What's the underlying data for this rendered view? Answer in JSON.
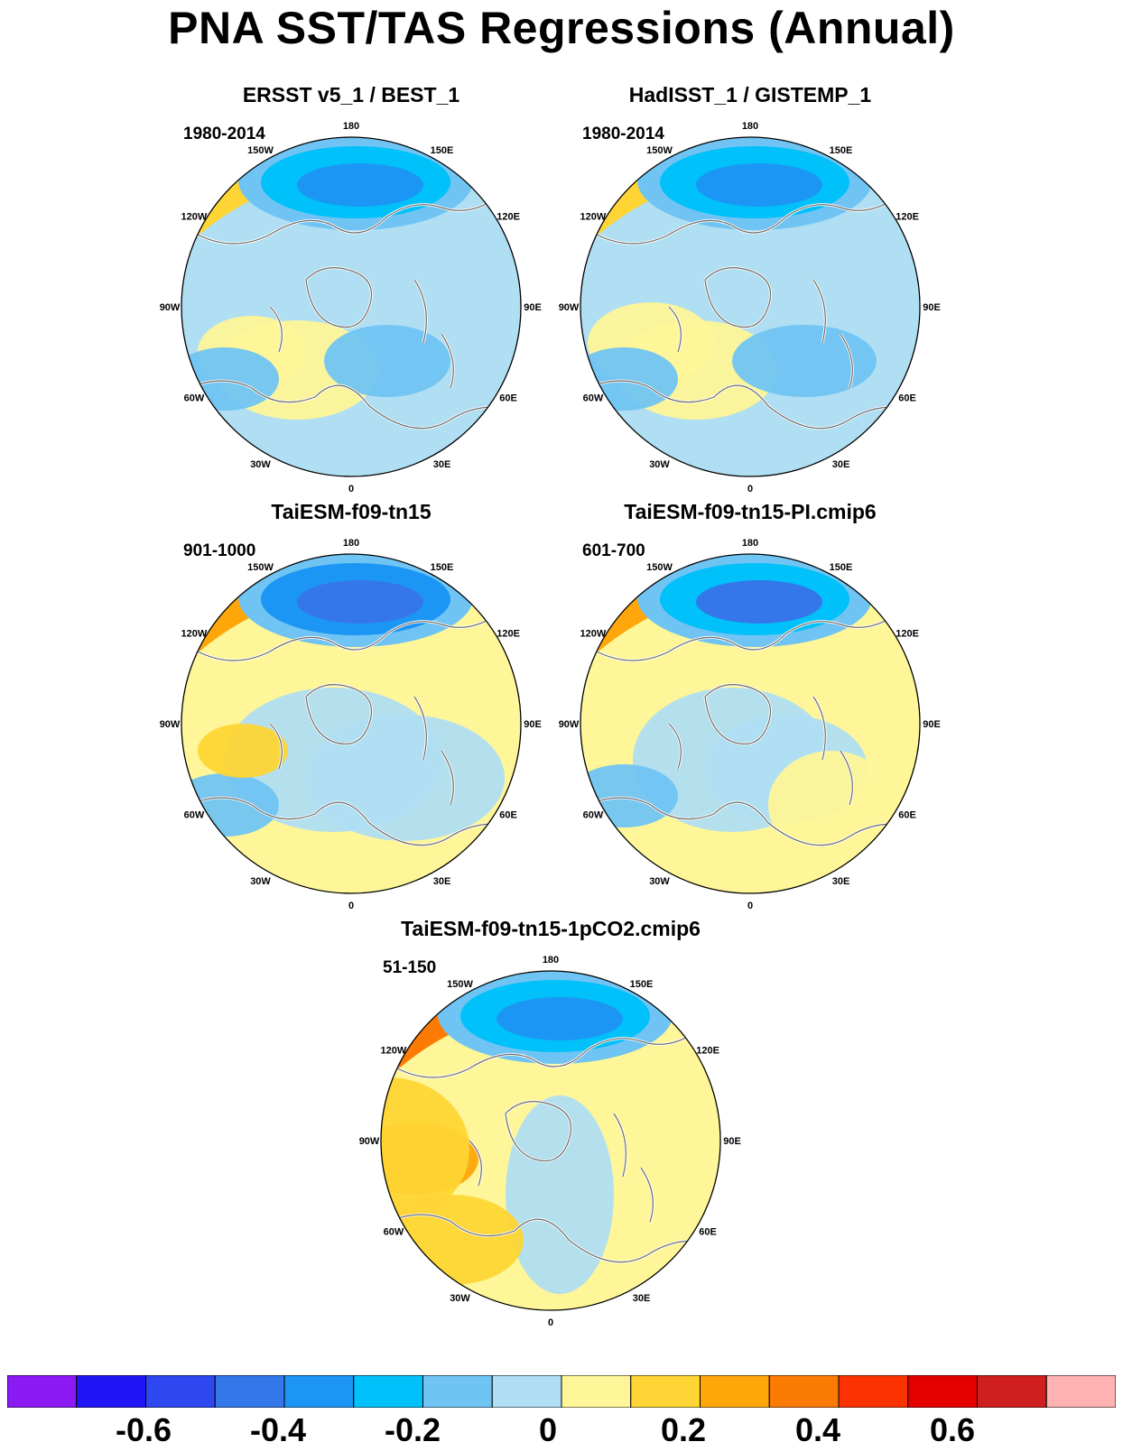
{
  "title": "PNA SST/TAS Regressions (Annual)",
  "palette": [
    "#8b1af5",
    "#1f15f5",
    "#2e47f0",
    "#3477eb",
    "#1c96f4",
    "#00c1f9",
    "#70c4f3",
    "#b0def2",
    "#fef698",
    "#fed534",
    "#fea60a",
    "#fc7b05",
    "#fc3300",
    "#e50000",
    "#cf1f1f",
    "#feb2b2"
  ],
  "land_color": "#b0def2",
  "lon_labels": [
    "180",
    "150E",
    "120E",
    "90E",
    "60E",
    "30E",
    "0",
    "30W",
    "60W",
    "90W",
    "120W",
    "150W"
  ],
  "panels": [
    {
      "title": "ERSST v5_1 / BEST_1",
      "years": "1980-2014"
    },
    {
      "title": "HadISST_1 / GISTEMP_1",
      "years": "1980-2014"
    },
    {
      "title": "TaiESM-f09-tn15",
      "years": "901-1000"
    },
    {
      "title": "TaiESM-f09-tn15-PI.cmip6",
      "years": "601-700"
    },
    {
      "title": "TaiESM-f09-tn15-1pCO2.cmip6",
      "years": "51-150"
    }
  ],
  "colorbar": {
    "labels": [
      "-0.6",
      "-0.4",
      "-0.2",
      "0",
      "0.2",
      "0.4",
      "0.6"
    ]
  }
}
